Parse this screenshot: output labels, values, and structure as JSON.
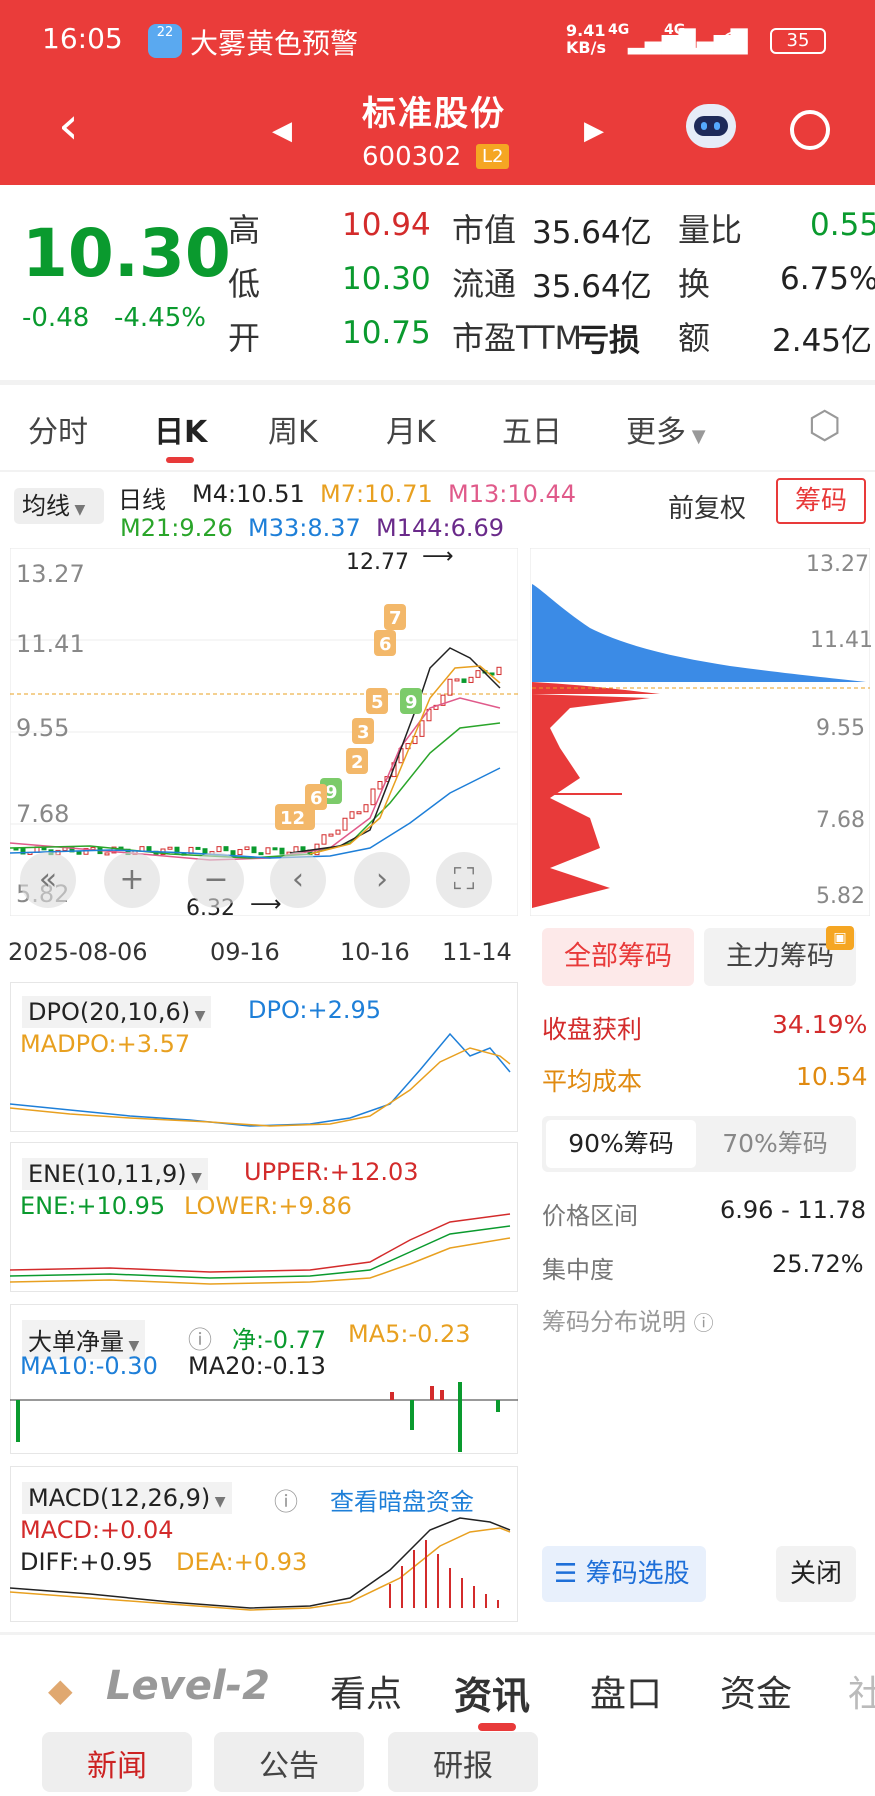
{
  "status": {
    "time": "16:05",
    "weather_badge": "22",
    "warning": "大雾黄色预警",
    "net_speed": "9.41",
    "net_unit": "KB/s",
    "signal1": "4G",
    "signal2": "4G",
    "battery": "35"
  },
  "header": {
    "title": "标准股份",
    "code": "600302",
    "level": "L2"
  },
  "quote": {
    "price": "10.30",
    "change": "-0.48",
    "change_pct": "-4.45%",
    "high_label": "高",
    "high": "10.94",
    "low_label": "低",
    "low": "10.30",
    "open_label": "开",
    "open": "10.75",
    "mcap_label": "市值",
    "mcap": "35.64亿",
    "float_label": "流通",
    "float": "35.64亿",
    "pe_label": "市盈TTM",
    "pe": "亏损",
    "vr_label": "量比",
    "vr": "0.55",
    "turnover_label": "换",
    "turnover": "6.75%",
    "amount_label": "额",
    "amount": "2.45亿"
  },
  "tabs": [
    "分时",
    "日K",
    "周K",
    "月K",
    "五日",
    "更多"
  ],
  "ma": {
    "selector": "均线",
    "kind": "日线",
    "m4": "M4:10.51",
    "m7": "M7:10.71",
    "m13": "M13:10.44",
    "m21": "M21:9.26",
    "m33": "M33:8.37",
    "m144": "M144:6.69",
    "adj": "前复权",
    "chip": "筹码"
  },
  "kline": {
    "yticks": [
      "13.27",
      "11.41",
      "9.55",
      "7.68",
      "5.82"
    ],
    "max_label": "12.77",
    "min_label": "6.32",
    "dates": [
      "2025-08-06",
      "09-16",
      "10-16",
      "11-14"
    ]
  },
  "chip_panel": {
    "yticks": [
      "13.27",
      "11.41",
      "9.55",
      "7.68",
      "5.82"
    ],
    "tab_all": "全部筹码",
    "tab_main": "主力筹码",
    "profit_label": "收盘获利",
    "profit": "34.19%",
    "avg_label": "平均成本",
    "avg": "10.54",
    "pct90": "90%筹码",
    "pct70": "70%筹码",
    "range_label": "价格区间",
    "range": "6.96 - 11.78",
    "conc_label": "集中度",
    "conc": "25.72%",
    "explain": "筹码分布说明",
    "select_btn": "筹码选股",
    "close_btn": "关闭"
  },
  "dpo": {
    "name": "DPO(20,10,6)",
    "v1": "DPO:+2.95",
    "v2": "MADPO:+3.57"
  },
  "ene": {
    "name": "ENE(10,11,9)",
    "v1": "UPPER:+12.03",
    "v2": "ENE:+10.95",
    "v3": "LOWER:+9.86"
  },
  "flow": {
    "name": "大单净量",
    "v1": "净:-0.77",
    "v2": "MA5:-0.23",
    "v3": "MA10:-0.30",
    "v4": "MA20:-0.13"
  },
  "macd": {
    "name": "MACD(12,26,9)",
    "link": "查看暗盘资金",
    "v1": "MACD:+0.04",
    "v2": "DIFF:+0.95",
    "v3": "DEA:+0.93"
  },
  "bottom": {
    "brand": "Level-2",
    "tabs": [
      "看点",
      "资讯",
      "盘口",
      "资金",
      "社"
    ],
    "chips": [
      "新闻",
      "公告",
      "研报"
    ]
  },
  "colors": {
    "red": "#ea3c3a",
    "green": "#0a9a2e",
    "blue": "#1e7fd8",
    "orange": "#e8a020",
    "pink": "#e05a8a",
    "purple": "#6a2a8a"
  }
}
